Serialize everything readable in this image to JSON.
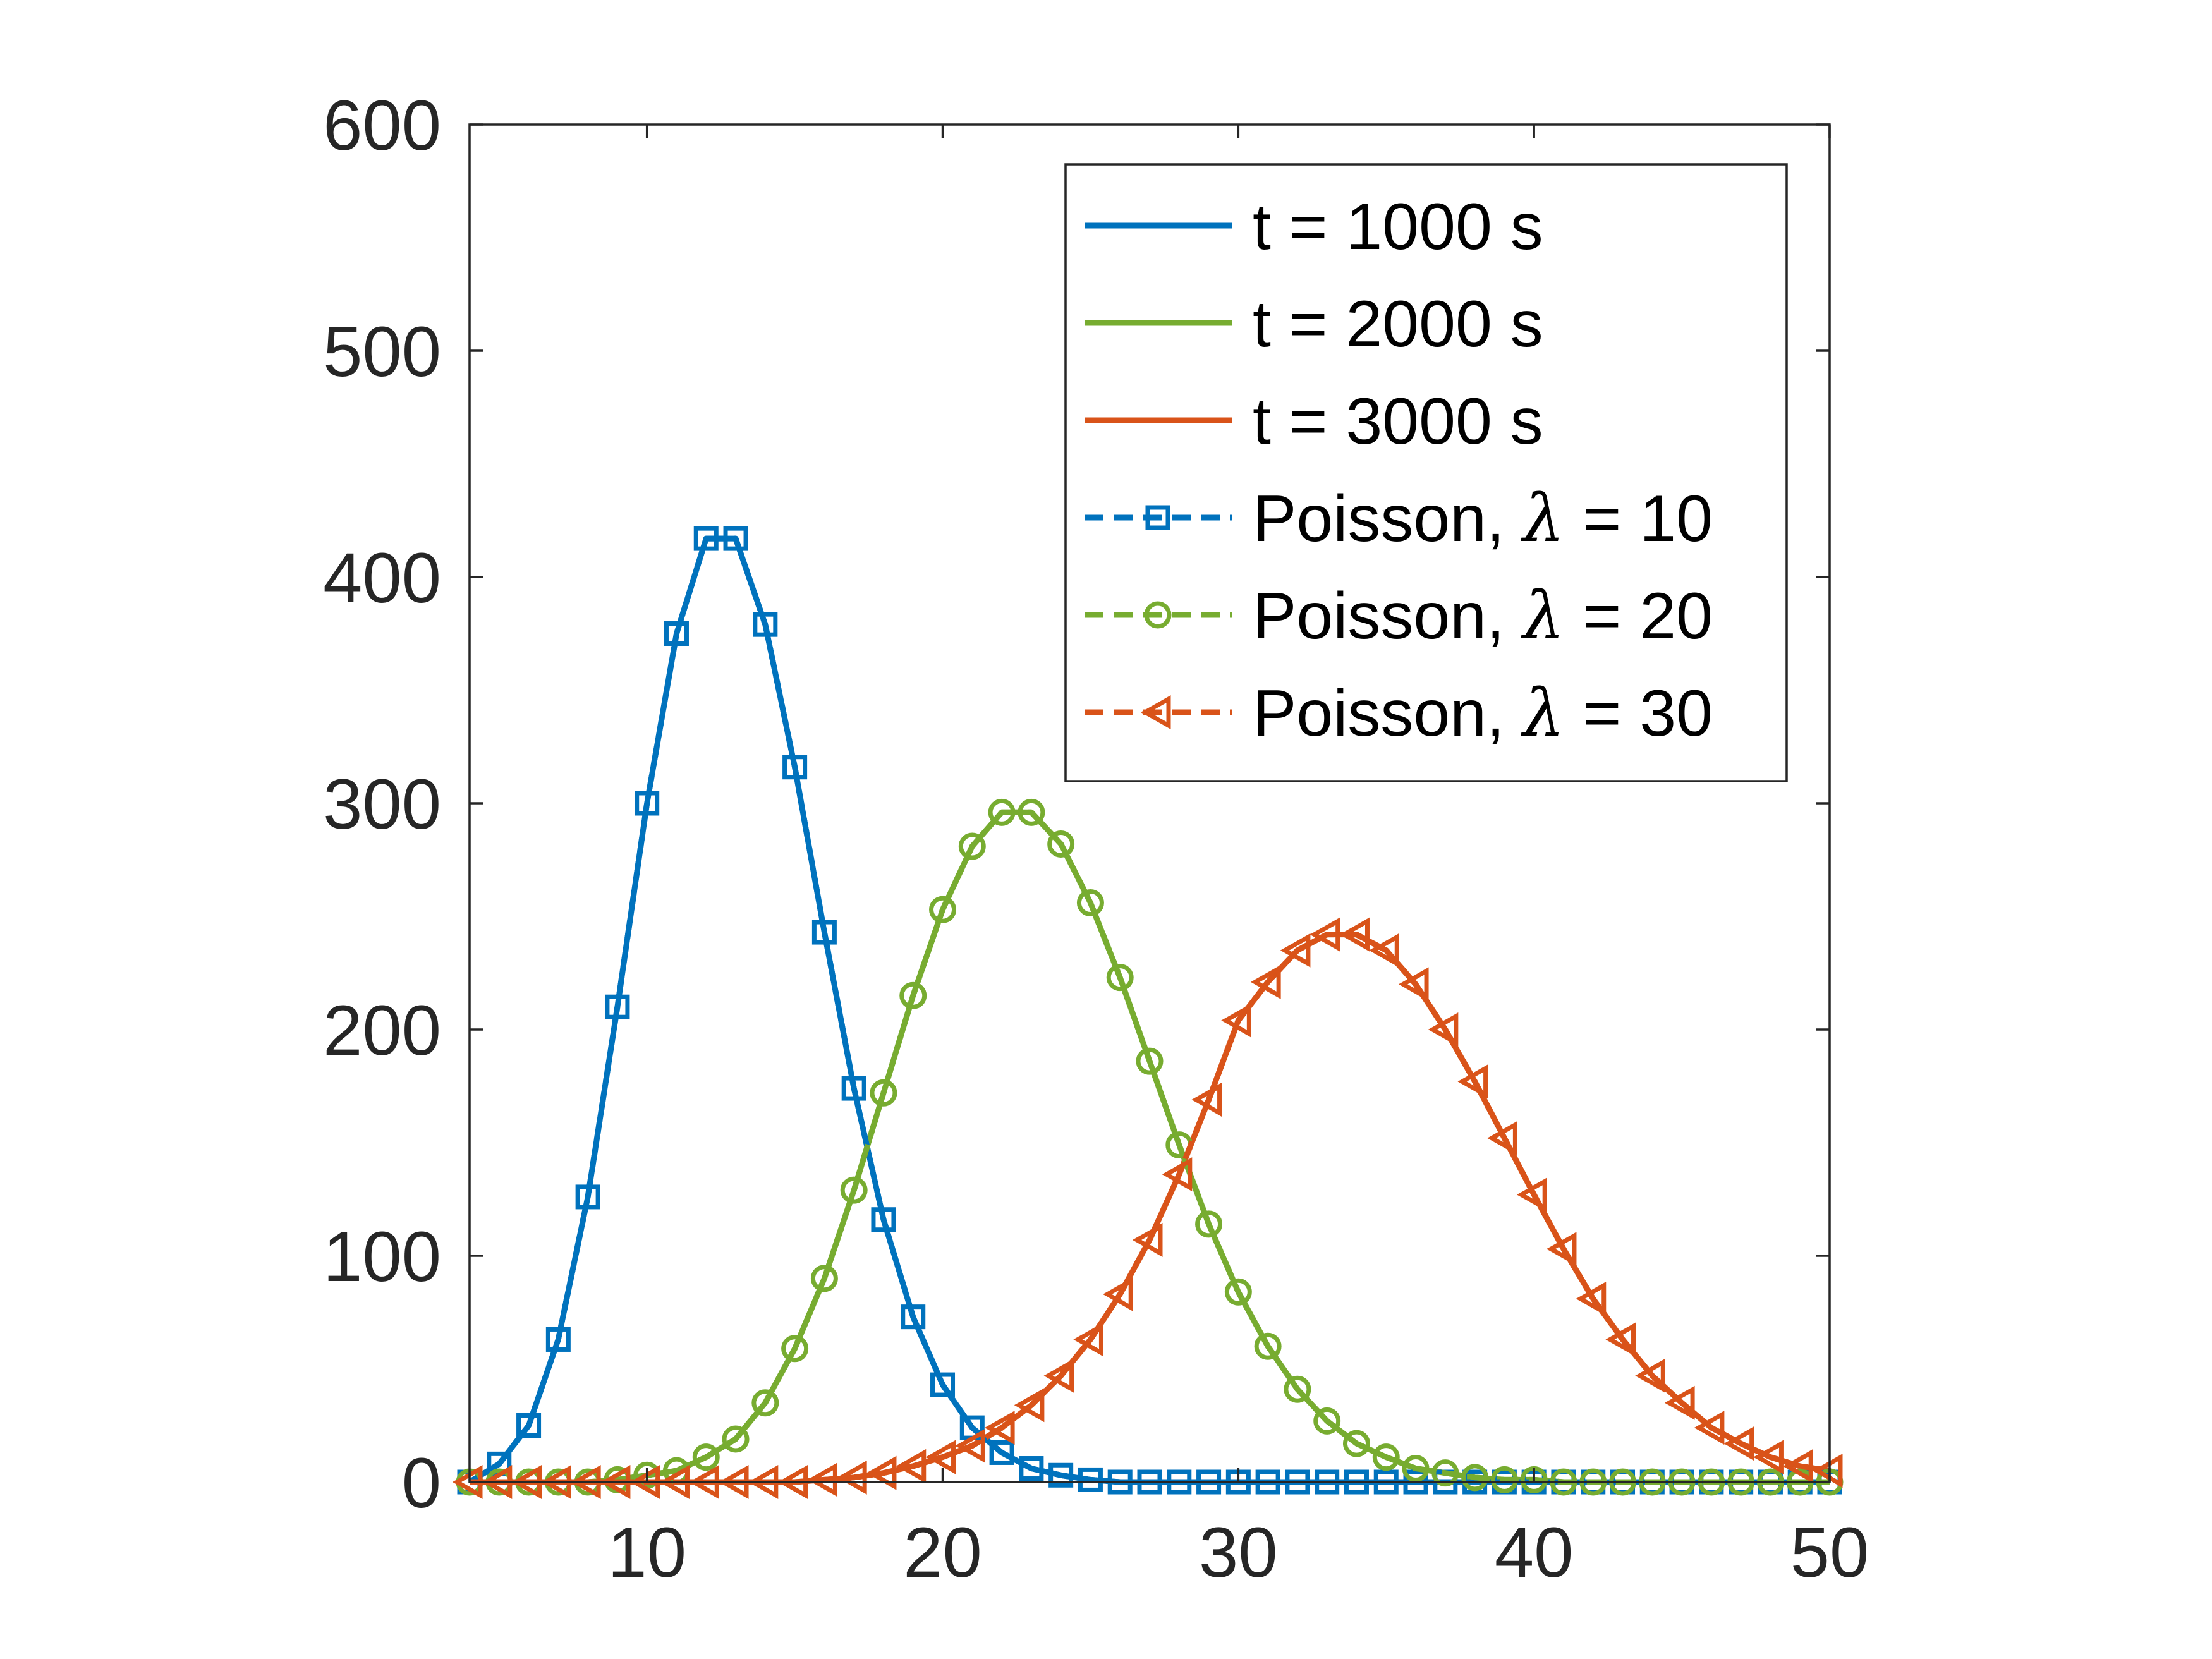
{
  "chart_data": {
    "type": "line",
    "title": "",
    "xlabel": "",
    "ylabel": "",
    "xlim": [
      4,
      50
    ],
    "ylim": [
      0,
      600
    ],
    "xticks": [
      10,
      20,
      30,
      40,
      50
    ],
    "yticks": [
      0,
      100,
      200,
      300,
      400,
      500,
      600
    ],
    "xtick_labels": [
      "10",
      "20",
      "30",
      "40",
      "50"
    ],
    "ytick_labels": [
      "0",
      "100",
      "200",
      "300",
      "400",
      "500",
      "600"
    ],
    "grid": false,
    "legend_position": "top-right",
    "x": [
      4,
      5,
      6,
      7,
      8,
      9,
      10,
      11,
      12,
      13,
      14,
      15,
      16,
      17,
      18,
      19,
      20,
      21,
      22,
      23,
      24,
      25,
      26,
      27,
      28,
      29,
      30,
      31,
      32,
      33,
      34,
      35,
      36,
      37,
      38,
      39,
      40,
      41,
      42,
      43,
      44,
      45,
      46,
      47,
      48,
      49,
      50
    ],
    "series": [
      {
        "name": "t = 1000 s",
        "style": "solid",
        "color": "#0072BD",
        "values": [
          0,
          8,
          25,
          63,
          126,
          210,
          300,
          375,
          417,
          417,
          379,
          316,
          243,
          174,
          116,
          73,
          43,
          24,
          13,
          6,
          3,
          1,
          0,
          0,
          0,
          0,
          0,
          0,
          0,
          0,
          0,
          0,
          0,
          0,
          0,
          0,
          0,
          0,
          0,
          0,
          0,
          0,
          0,
          0,
          0,
          0,
          0
        ]
      },
      {
        "name": "t = 2000 s",
        "style": "solid",
        "color": "#77AC30",
        "values": [
          0,
          0,
          0,
          0,
          0,
          1,
          3,
          5,
          11,
          19,
          35,
          59,
          90,
          129,
          172,
          215,
          253,
          281,
          296,
          296,
          282,
          256,
          223,
          186,
          149,
          114,
          84,
          60,
          41,
          27,
          17,
          11,
          6,
          4,
          2,
          1,
          1,
          0,
          0,
          0,
          0,
          0,
          0,
          0,
          0,
          0,
          0
        ]
      },
      {
        "name": "t = 3000 s",
        "style": "solid",
        "color": "#D95319",
        "values": [
          0,
          0,
          0,
          0,
          0,
          0,
          0,
          0,
          0,
          0,
          0,
          0,
          1,
          2,
          4,
          7,
          11,
          16,
          24,
          34,
          47,
          63,
          83,
          107,
          136,
          169,
          204,
          221,
          235,
          242,
          242,
          235,
          220,
          200,
          177,
          152,
          127,
          103,
          81,
          63,
          47,
          35,
          24,
          17,
          11,
          7,
          5
        ]
      },
      {
        "name": "Poisson, λ = 10",
        "name_prefix": "Poisson, ",
        "name_symbol": "λ",
        "name_suffix": " = 10",
        "style": "dashed",
        "marker": "square",
        "color": "#0072BD",
        "values": [
          0,
          8,
          25,
          63,
          126,
          210,
          300,
          375,
          417,
          417,
          379,
          316,
          243,
          174,
          116,
          73,
          43,
          24,
          13,
          6,
          3,
          1,
          0,
          0,
          0,
          0,
          0,
          0,
          0,
          0,
          0,
          0,
          0,
          0,
          0,
          0,
          0,
          0,
          0,
          0,
          0,
          0,
          0,
          0,
          0,
          0,
          0
        ]
      },
      {
        "name": "Poisson, λ = 20",
        "name_prefix": "Poisson, ",
        "name_symbol": "λ",
        "name_suffix": " = 20",
        "style": "dashed",
        "marker": "circle",
        "color": "#77AC30",
        "values": [
          0,
          0,
          0,
          0,
          0,
          1,
          3,
          5,
          11,
          19,
          35,
          59,
          90,
          129,
          172,
          215,
          253,
          281,
          296,
          296,
          282,
          256,
          223,
          186,
          149,
          114,
          84,
          60,
          41,
          27,
          17,
          11,
          6,
          4,
          2,
          1,
          1,
          0,
          0,
          0,
          0,
          0,
          0,
          0,
          0,
          0,
          0
        ]
      },
      {
        "name": "Poisson, λ = 30",
        "name_prefix": "Poisson, ",
        "name_symbol": "λ",
        "name_suffix": " = 30",
        "style": "dashed",
        "marker": "triangle-left",
        "color": "#D95319",
        "values": [
          0,
          0,
          0,
          0,
          0,
          0,
          0,
          0,
          0,
          0,
          0,
          0,
          1,
          2,
          4,
          7,
          11,
          16,
          24,
          34,
          47,
          63,
          83,
          107,
          136,
          169,
          204,
          221,
          235,
          242,
          242,
          235,
          220,
          200,
          177,
          152,
          127,
          103,
          81,
          63,
          47,
          35,
          24,
          17,
          11,
          7,
          5
        ]
      }
    ]
  }
}
